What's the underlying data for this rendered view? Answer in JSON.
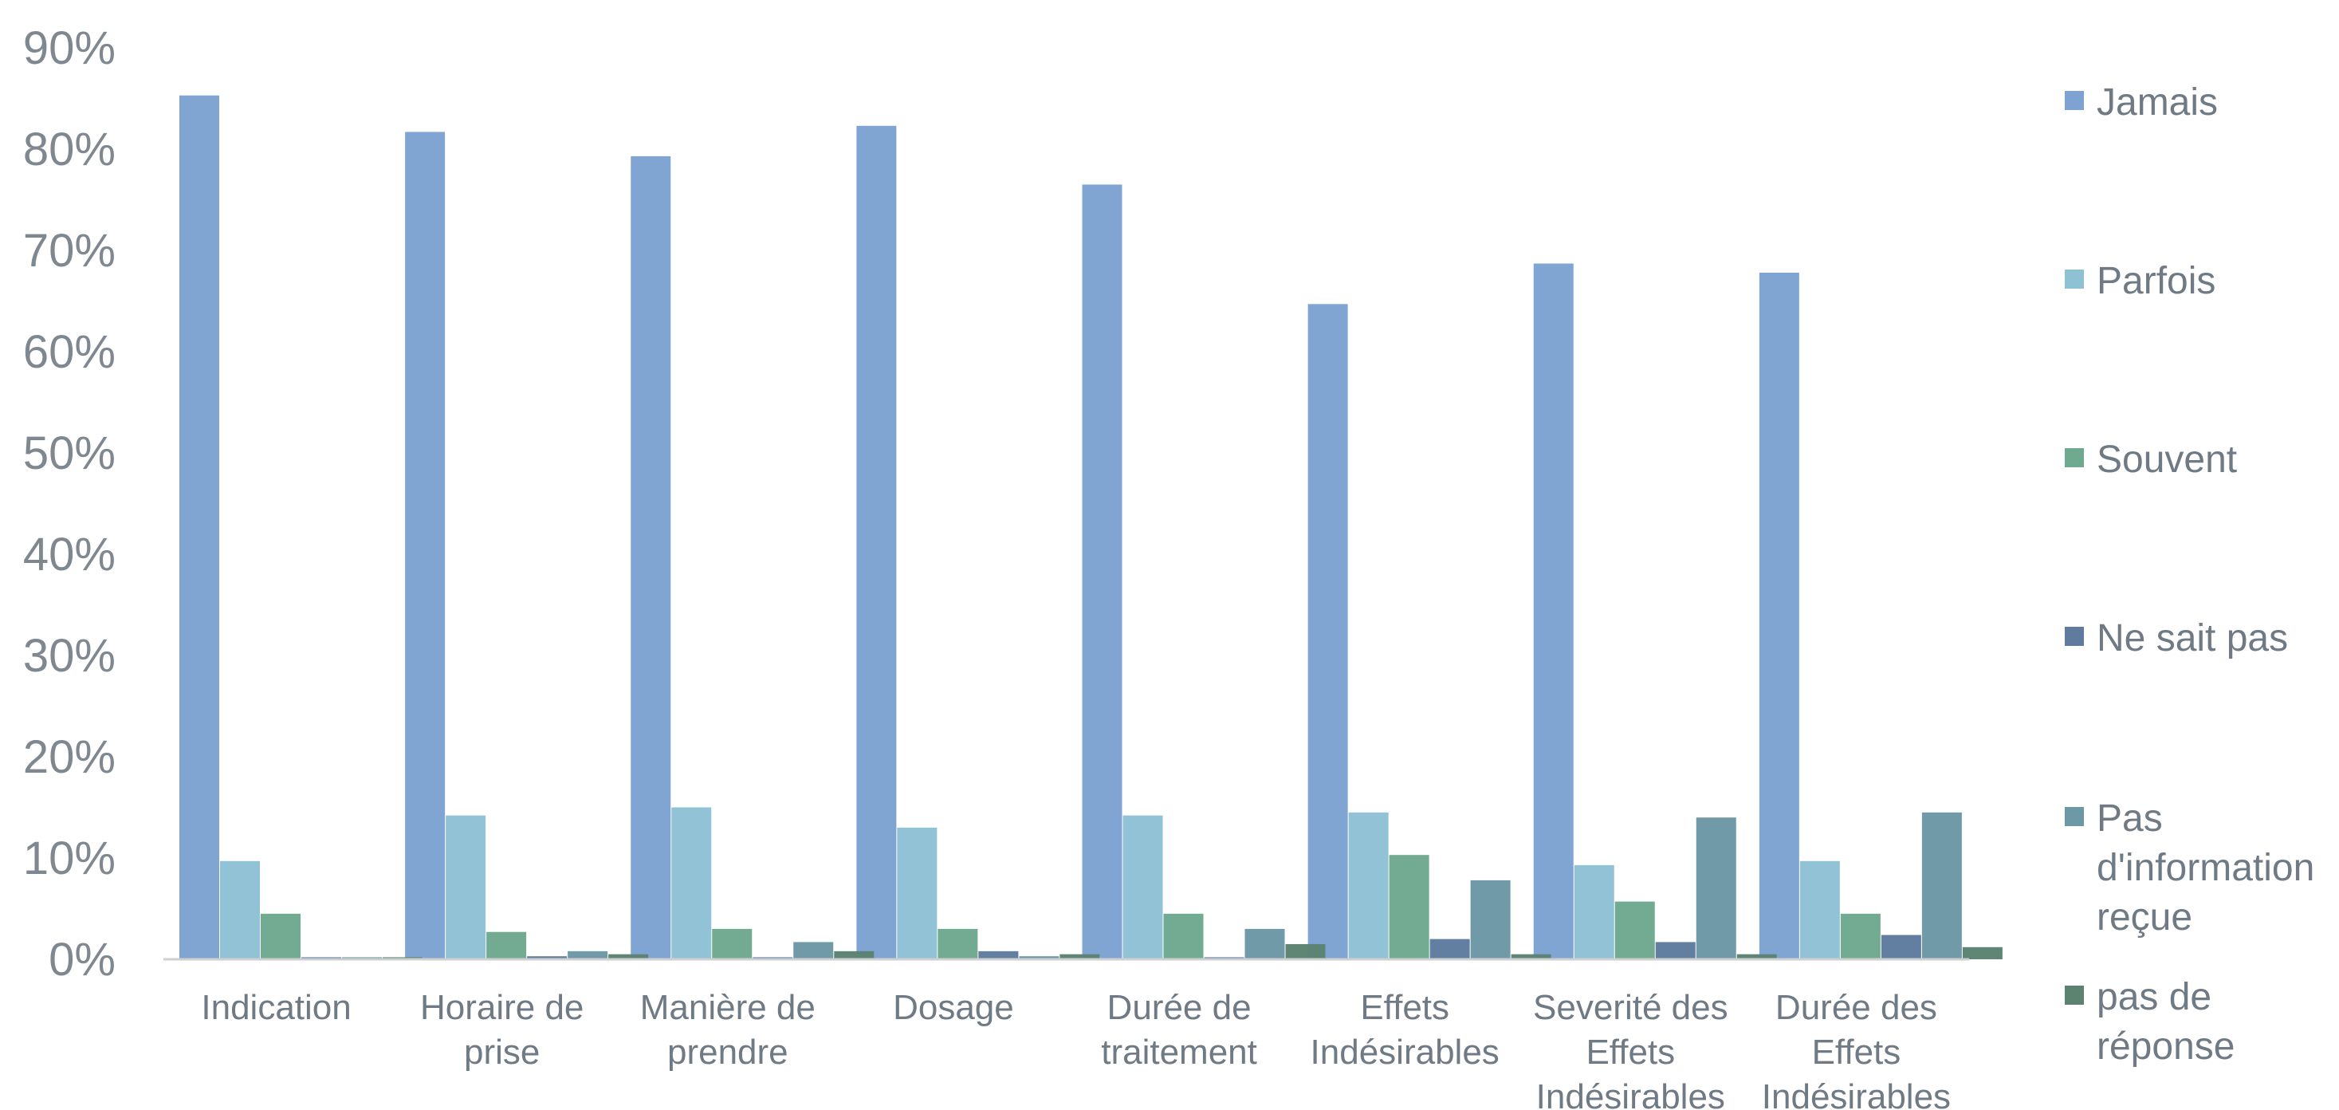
{
  "chart_data": {
    "type": "bar",
    "ylim": [
      0,
      90
    ],
    "yticks": [
      "0%",
      "10%",
      "20%",
      "30%",
      "40%",
      "50%",
      "60%",
      "70%",
      "80%",
      "90%"
    ],
    "categories": [
      [
        "Indication"
      ],
      [
        "Horaire de",
        "prise"
      ],
      [
        "Manière de",
        "prendre"
      ],
      [
        "Dosage"
      ],
      [
        "Durée de",
        "traitement"
      ],
      [
        "Effets",
        "Indésirables"
      ],
      [
        "Severité des",
        "Effets",
        "Indésirables"
      ],
      [
        "Durée des",
        "Effets",
        "Indésirables"
      ]
    ],
    "series": [
      {
        "name": "Jamais",
        "color": "#7ea3d2",
        "values": [
          85.3,
          81.7,
          79.3,
          82.3,
          76.5,
          64.7,
          68.7,
          67.8
        ]
      },
      {
        "name": "Parfois",
        "color": "#8fc1d4",
        "values": [
          9.7,
          14.2,
          15.0,
          13.0,
          14.2,
          14.5,
          9.3,
          9.7
        ]
      },
      {
        "name": "Souvent",
        "color": "#6fa98f",
        "values": [
          4.5,
          2.7,
          3.0,
          3.0,
          4.5,
          10.3,
          5.7,
          4.5
        ]
      },
      {
        "name": "Ne sait pas",
        "color": "#5f7c9f",
        "values": [
          0.2,
          0.3,
          0.2,
          0.8,
          0.2,
          2.0,
          1.7,
          2.4
        ]
      },
      {
        "name": "Pas d'information reçue",
        "legend_lines": [
          "Pas",
          "d'information",
          "reçue"
        ],
        "color": "#6d98a5",
        "values": [
          0.2,
          0.8,
          1.7,
          0.3,
          3.0,
          7.8,
          14.0,
          14.5
        ]
      },
      {
        "name": "pas de réponse",
        "legend_lines": [
          "pas de",
          "réponse"
        ],
        "color": "#5c8372",
        "values": [
          0.2,
          0.5,
          0.8,
          0.5,
          1.5,
          0.5,
          0.5,
          1.2
        ]
      }
    ],
    "legend_position": "right",
    "grid": false
  }
}
